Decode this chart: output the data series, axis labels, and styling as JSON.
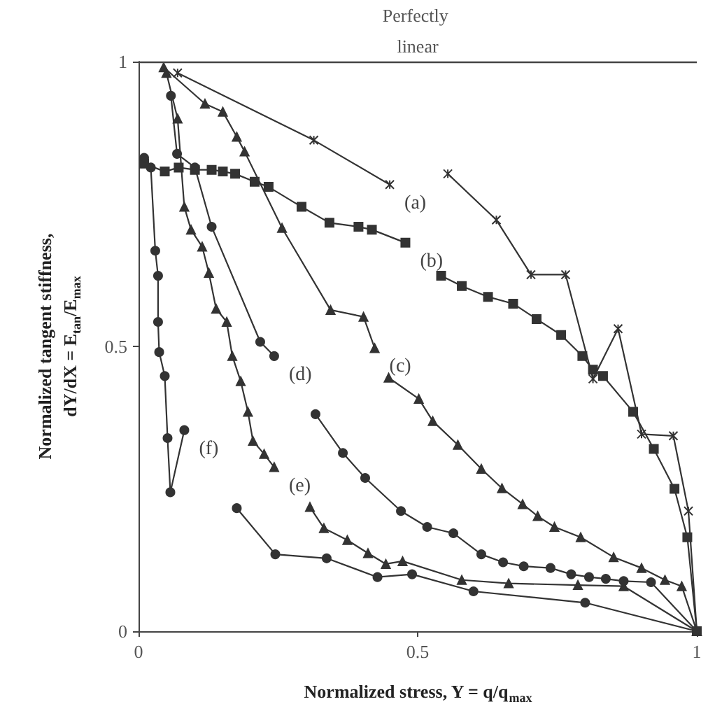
{
  "chart_data": {
    "type": "line",
    "xlabel": "Normalized stress, Y = q/q$_{max}$",
    "ylabel": "Normalized tangent stiffness, dY/dX = E$_{tan}$/E$_{max}$",
    "xlim": [
      0,
      1
    ],
    "ylim": [
      0,
      1
    ],
    "xticks": [
      0,
      0.5,
      1
    ],
    "yticks": [
      0,
      0.5,
      1
    ],
    "grid": false,
    "line_style": "solid",
    "ref_lines": [
      {
        "axis": "y",
        "value": 1,
        "label": "Perfectly linear",
        "color": "#444444"
      }
    ],
    "series": [
      {
        "name": "(a)",
        "color": "#333333",
        "marker": "cross",
        "x": [
          0.07,
          0.314,
          0.45,
          0.5,
          0.554,
          0.641,
          0.703,
          0.765,
          0.814,
          0.859,
          0.901,
          0.958,
          0.985,
          1
        ],
        "values": [
          0.98,
          0.862,
          0.784,
          null,
          0.803,
          0.722,
          0.626,
          0.626,
          0.443,
          0.531,
          0.346,
          0.343,
          0.211,
          0
        ]
      },
      {
        "name": "(b)",
        "color": "#333333",
        "marker": "square",
        "x": [
          0.01,
          0.047,
          0.072,
          0.101,
          0.131,
          0.151,
          0.173,
          0.208,
          0.233,
          0.292,
          0.342,
          0.394,
          0.418,
          0.478,
          0.51,
          0.542,
          0.579,
          0.626,
          0.671,
          0.713,
          0.757,
          0.795,
          0.814,
          0.832,
          0.886,
          0.923,
          0.96,
          0.983,
          1
        ],
        "values": [
          0.821,
          0.807,
          0.814,
          0.81,
          0.81,
          0.807,
          0.803,
          0.789,
          0.78,
          0.745,
          0.717,
          0.71,
          0.705,
          0.682,
          null,
          0.624,
          0.606,
          0.587,
          0.575,
          0.548,
          0.52,
          0.483,
          0.459,
          0.448,
          0.385,
          0.32,
          0.25,
          0.165,
          0
        ]
      },
      {
        "name": "(c)",
        "color": "#333333",
        "marker": "triangle",
        "x": [
          0.045,
          0.119,
          0.151,
          0.176,
          0.19,
          0.257,
          0.344,
          0.403,
          0.423,
          0.435,
          0.448,
          0.502,
          0.527,
          0.572,
          0.614,
          0.651,
          0.688,
          0.715,
          0.745,
          0.792,
          0.851,
          0.901,
          0.943,
          0.973,
          1
        ],
        "values": [
          0.99,
          0.926,
          0.912,
          0.868,
          0.842,
          0.708,
          0.564,
          0.552,
          0.497,
          null,
          0.445,
          0.408,
          0.369,
          0.327,
          0.285,
          0.251,
          0.223,
          0.202,
          0.183,
          0.165,
          0.13,
          0.111,
          0.09,
          0.079,
          0
        ]
      },
      {
        "name": "(d)",
        "color": "#333333",
        "marker": "circle",
        "x": [
          0.058,
          0.069,
          0.101,
          0.131,
          0.218,
          0.243,
          0.28,
          0.317,
          0.366,
          0.406,
          0.47,
          0.517,
          0.564,
          0.614,
          0.653,
          0.69,
          0.738,
          0.775,
          0.807,
          0.837,
          0.869,
          0.918,
          1
        ],
        "values": [
          0.94,
          0.838,
          0.814,
          0.71,
          0.508,
          0.483,
          null,
          0.381,
          0.313,
          0.269,
          0.211,
          0.183,
          0.172,
          0.135,
          0.121,
          0.114,
          0.111,
          0.1,
          0.095,
          0.092,
          0.088,
          0.086,
          0
        ]
      },
      {
        "name": "(e)",
        "color": "#333333",
        "marker": "triangle",
        "x": [
          0.05,
          0.07,
          0.082,
          0.094,
          0.114,
          0.126,
          0.139,
          0.158,
          0.168,
          0.183,
          0.196,
          0.205,
          0.225,
          0.243,
          0.27,
          0.307,
          0.332,
          0.374,
          0.411,
          0.443,
          0.473,
          0.579,
          0.663,
          0.787,
          0.869,
          1
        ],
        "values": [
          0.98,
          0.9,
          0.745,
          0.705,
          0.675,
          0.629,
          0.566,
          0.543,
          0.483,
          0.439,
          0.385,
          0.334,
          0.311,
          0.288,
          null,
          0.218,
          0.181,
          0.16,
          0.137,
          0.118,
          0.123,
          0.09,
          0.084,
          0.081,
          0.079,
          0
        ]
      },
      {
        "name": "(f)",
        "color": "#333333",
        "marker": "circle",
        "x": [
          0.01,
          0.022,
          0.03,
          0.035,
          0.035,
          0.037,
          0.047,
          0.052,
          0.057,
          0.082,
          0.13,
          0.176,
          0.245,
          0.337,
          0.428,
          0.49,
          0.6,
          0.8,
          1
        ],
        "values": [
          0.831,
          0.814,
          0.668,
          0.624,
          0.543,
          0.49,
          0.448,
          0.339,
          0.244,
          0.353,
          null,
          0.216,
          0.135,
          0.128,
          0.095,
          0.1,
          0.07,
          0.05,
          0
        ]
      }
    ]
  }
}
